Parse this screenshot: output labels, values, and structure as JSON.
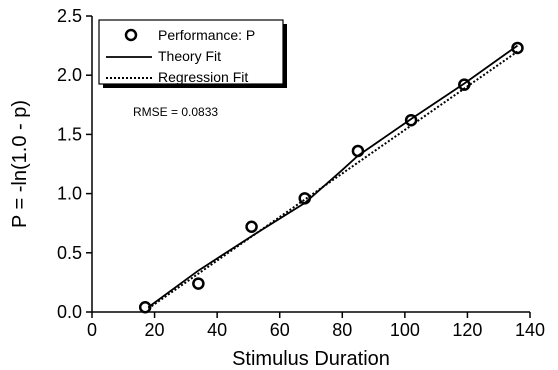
{
  "chart_data": {
    "type": "scatter",
    "xlabel": "Stimulus Duration",
    "ylabel": "P = -ln(1.0 - p)",
    "xlim": [
      0,
      140
    ],
    "ylim": [
      0,
      2.5
    ],
    "x_ticks": [
      "0",
      "20",
      "40",
      "60",
      "80",
      "100",
      "120",
      "140"
    ],
    "y_ticks": [
      "0.0",
      "0.5",
      "1.0",
      "1.5",
      "2.0",
      "2.5"
    ],
    "x_tick_values": [
      0,
      20,
      40,
      60,
      80,
      100,
      120,
      140
    ],
    "y_tick_values": [
      0,
      0.5,
      1.0,
      1.5,
      2.0,
      2.5
    ],
    "grid": false,
    "legend_position": "top-left",
    "series": [
      {
        "name": "Performance: P",
        "style": "open-circle-markers",
        "color": "#000000",
        "x": [
          17,
          34,
          51,
          68,
          85,
          102,
          119,
          136
        ],
        "y": [
          0.04,
          0.24,
          0.72,
          0.96,
          1.36,
          1.62,
          1.92,
          2.23
        ]
      },
      {
        "name": "Theory Fit",
        "style": "solid-line",
        "color": "#000000",
        "x": [
          18,
          34,
          51,
          68,
          80,
          85,
          102,
          119,
          136
        ],
        "y": [
          0.04,
          0.35,
          0.64,
          0.92,
          1.2,
          1.32,
          1.63,
          1.93,
          2.25
        ]
      },
      {
        "name": "Regression Fit",
        "style": "dotted-line",
        "color": "#000000",
        "x": [
          18,
          136
        ],
        "y": [
          0.03,
          2.2
        ]
      }
    ],
    "annotation": "RMSE = 0.0833"
  }
}
